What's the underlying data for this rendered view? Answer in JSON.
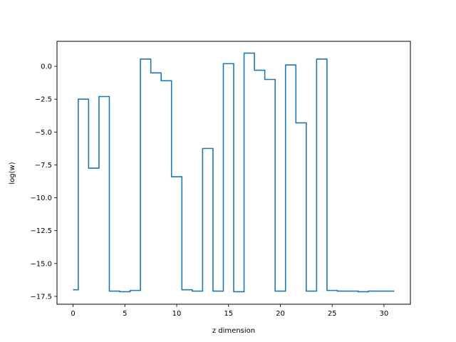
{
  "chart_data": {
    "type": "line",
    "drawstyle": "steps-mid",
    "xlabel": "z dimension",
    "ylabel": "log(w)",
    "xlim": [
      -1.55,
      32.55
    ],
    "ylim": [
      -18.1,
      1.9
    ],
    "xticks": [
      0,
      5,
      10,
      15,
      20,
      25,
      30
    ],
    "xtick_labels": [
      "0",
      "5",
      "10",
      "15",
      "20",
      "25",
      "30"
    ],
    "yticks": [
      0.0,
      -2.5,
      -5.0,
      -7.5,
      -10.0,
      -12.5,
      -15.0,
      -17.5
    ],
    "ytick_labels": [
      "0.0",
      "−2.5",
      "−5.0",
      "−7.5",
      "−10.0",
      "−12.5",
      "−15.0",
      "−17.5"
    ],
    "grid": false,
    "series": [
      {
        "color": "#1f77b4",
        "x": [
          0,
          1,
          2,
          3,
          4,
          5,
          6,
          7,
          8,
          9,
          10,
          11,
          12,
          13,
          14,
          15,
          16,
          17,
          18,
          19,
          20,
          21,
          22,
          23,
          24,
          25,
          26,
          27,
          28,
          29,
          30,
          31
        ],
        "y": [
          -17.0,
          -2.5,
          -7.75,
          -2.3,
          -17.1,
          -17.15,
          -17.05,
          0.55,
          -0.5,
          -1.1,
          -8.4,
          -17.0,
          -17.1,
          -6.25,
          -17.1,
          0.2,
          -17.15,
          1.0,
          -0.3,
          -1.0,
          -17.1,
          0.1,
          -4.3,
          -17.1,
          0.55,
          -17.05,
          -17.1,
          -17.1,
          -17.15,
          -17.1,
          -17.1,
          -17.1
        ]
      }
    ]
  }
}
